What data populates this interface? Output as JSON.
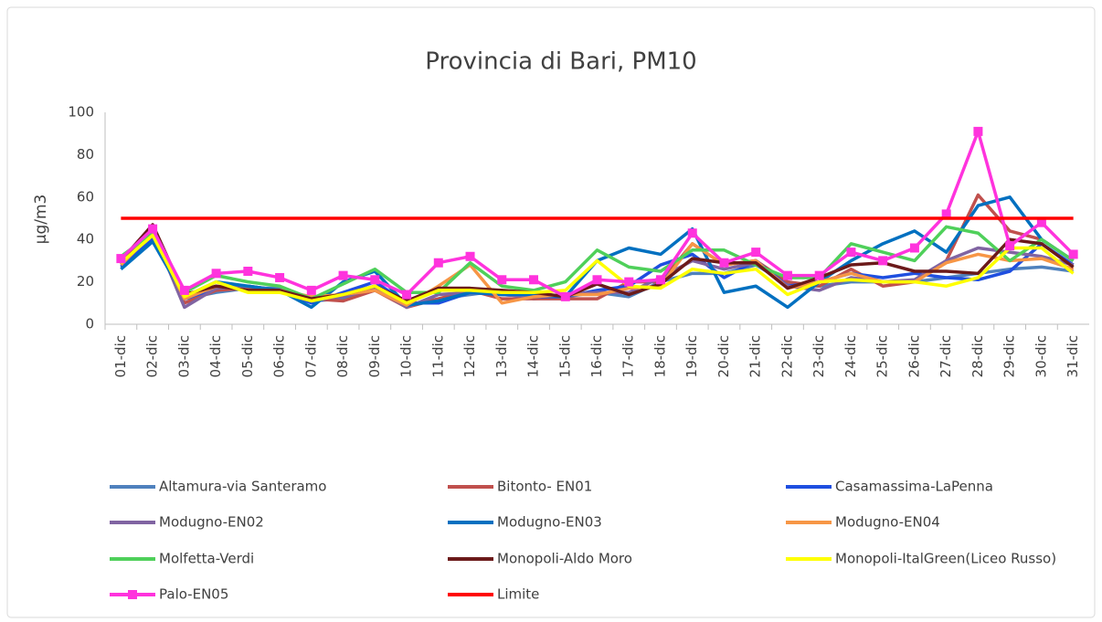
{
  "chart_data": {
    "type": "line",
    "title": "Provincia di Bari, PM10",
    "y_label": "µg/m3",
    "categories": [
      "01-dic",
      "02-dic",
      "03-dic",
      "04-dic",
      "05-dic",
      "06-dic",
      "07-dic",
      "08-dic",
      "09-dic",
      "10-dic",
      "11-dic",
      "12-dic",
      "13-dic",
      "14-dic",
      "15-dic",
      "16-dic",
      "17-dic",
      "18-dic",
      "19-dic",
      "20-dic",
      "21-dic",
      "22-dic",
      "23-dic",
      "24-dic",
      "25-dic",
      "26-dic",
      "27-dic",
      "28-dic",
      "29-dic",
      "30-dic",
      "31-dic"
    ],
    "ylim": [
      0,
      100
    ],
    "yticks": [
      0,
      20,
      40,
      60,
      80,
      100
    ],
    "grid": false,
    "legend": "bottom",
    "series": [
      {
        "name": "Altamura-via Santeramo",
        "color": "#4f81bd",
        "values": [
          28,
          41,
          12,
          15,
          17,
          17,
          11,
          12,
          16,
          9,
          12,
          14,
          16,
          12,
          13,
          15,
          13,
          20,
          24,
          24,
          28,
          19,
          18,
          20,
          20,
          20,
          22,
          24,
          26,
          27,
          25
        ]
      },
      {
        "name": "Bitonto- EN01",
        "color": "#c0504d",
        "values": [
          30,
          46,
          10,
          16,
          17,
          16,
          12,
          11,
          16,
          8,
          12,
          16,
          12,
          12,
          12,
          12,
          20,
          20,
          38,
          28,
          30,
          20,
          18,
          26,
          18,
          20,
          30,
          61,
          44,
          40,
          30
        ]
      },
      {
        "name": "Casamassima-LaPenna",
        "color": "#1f4fe0",
        "values": [
          27,
          40,
          12,
          17,
          18,
          16,
          10,
          15,
          20,
          10,
          10,
          15,
          14,
          13,
          13,
          16,
          18,
          28,
          33,
          22,
          30,
          18,
          20,
          24,
          22,
          24,
          22,
          21,
          25,
          38,
          28
        ]
      },
      {
        "name": "Modugno-EN02",
        "color": "#8064a2",
        "values": [
          28,
          44,
          8,
          17,
          18,
          16,
          12,
          13,
          17,
          8,
          14,
          15,
          14,
          13,
          14,
          15,
          15,
          22,
          30,
          26,
          29,
          18,
          16,
          22,
          20,
          21,
          30,
          36,
          34,
          32,
          28
        ]
      },
      {
        "name": "Modugno-EN03",
        "color": "#0070c0",
        "values": [
          26,
          39,
          13,
          20,
          18,
          16,
          8,
          20,
          25,
          9,
          11,
          15,
          14,
          14,
          13,
          30,
          36,
          33,
          45,
          15,
          18,
          8,
          20,
          30,
          38,
          44,
          34,
          56,
          60,
          40,
          30
        ]
      },
      {
        "name": "Modugno-EN04",
        "color": "#f79646",
        "values": [
          28,
          43,
          12,
          18,
          16,
          16,
          13,
          14,
          16,
          9,
          18,
          28,
          10,
          13,
          14,
          14,
          17,
          18,
          38,
          28,
          30,
          17,
          20,
          24,
          20,
          20,
          29,
          33,
          30,
          31,
          26
        ]
      },
      {
        "name": "Molfetta-Verdi",
        "color": "#4fd05a",
        "values": [
          32,
          43,
          15,
          23,
          20,
          18,
          12,
          19,
          26,
          15,
          15,
          29,
          18,
          16,
          20,
          35,
          27,
          25,
          35,
          35,
          28,
          22,
          22,
          38,
          34,
          30,
          46,
          43,
          30,
          40,
          30
        ]
      },
      {
        "name": "Monopoli-Aldo Moro",
        "color": "#6b1a1a",
        "values": [
          30,
          47,
          14,
          18,
          16,
          16,
          12,
          14,
          18,
          11,
          17,
          17,
          16,
          15,
          13,
          19,
          14,
          19,
          31,
          29,
          29,
          17,
          22,
          28,
          29,
          25,
          25,
          24,
          40,
          38,
          27
        ]
      },
      {
        "name": "Monopoli-ItalGreen(Liceo Russo)",
        "color": "#ffff00",
        "values": [
          29,
          42,
          13,
          20,
          15,
          15,
          11,
          14,
          18,
          10,
          16,
          16,
          15,
          15,
          16,
          30,
          18,
          17,
          26,
          24,
          26,
          14,
          20,
          21,
          20,
          20,
          18,
          22,
          36,
          36,
          24
        ]
      },
      {
        "name": "Palo-EN05",
        "color": "#ff33dd",
        "marker": "square",
        "values": [
          31,
          45,
          16,
          24,
          25,
          22,
          16,
          23,
          21,
          14,
          29,
          32,
          21,
          21,
          13,
          21,
          20,
          21,
          43,
          29,
          34,
          23,
          23,
          34,
          30,
          36,
          52,
          91,
          37,
          48,
          33
        ]
      },
      {
        "name": "Limite",
        "color": "#ff0000",
        "values": [
          50,
          50,
          50,
          50,
          50,
          50,
          50,
          50,
          50,
          50,
          50,
          50,
          50,
          50,
          50,
          50,
          50,
          50,
          50,
          50,
          50,
          50,
          50,
          50,
          50,
          50,
          50,
          50,
          50,
          50,
          50
        ]
      }
    ]
  }
}
